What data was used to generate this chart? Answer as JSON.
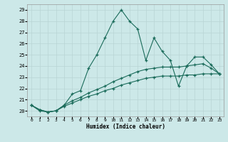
{
  "xlabel": "Humidex (Indice chaleur)",
  "x": [
    0,
    1,
    2,
    3,
    4,
    5,
    6,
    7,
    8,
    9,
    10,
    11,
    12,
    13,
    14,
    15,
    16,
    17,
    18,
    19,
    20,
    21,
    22,
    23
  ],
  "y_main": [
    20.5,
    20.0,
    19.9,
    20.0,
    20.5,
    21.5,
    21.8,
    23.8,
    25.0,
    26.5,
    28.0,
    29.0,
    28.0,
    27.3,
    24.5,
    26.5,
    25.3,
    24.5,
    22.2,
    24.0,
    24.8,
    24.8,
    24.1,
    23.3
  ],
  "y_line1": [
    20.5,
    20.1,
    19.9,
    20.0,
    20.5,
    20.9,
    21.2,
    21.6,
    21.9,
    22.2,
    22.6,
    22.9,
    23.2,
    23.5,
    23.7,
    23.8,
    23.9,
    23.9,
    23.9,
    24.0,
    24.1,
    24.2,
    23.8,
    23.3
  ],
  "y_line2": [
    20.5,
    20.1,
    19.9,
    20.0,
    20.4,
    20.7,
    21.0,
    21.3,
    21.5,
    21.8,
    22.0,
    22.3,
    22.5,
    22.7,
    22.9,
    23.0,
    23.1,
    23.1,
    23.1,
    23.2,
    23.2,
    23.3,
    23.3,
    23.3
  ],
  "color": "#1a6b5a",
  "bg_color": "#cce8e8",
  "grid_color": "#b8d4d4",
  "ylim": [
    19.5,
    29.5
  ],
  "yticks": [
    20,
    21,
    22,
    23,
    24,
    25,
    26,
    27,
    28,
    29
  ],
  "xticks": [
    0,
    1,
    2,
    3,
    4,
    5,
    6,
    7,
    8,
    9,
    10,
    11,
    12,
    13,
    14,
    15,
    16,
    17,
    18,
    19,
    20,
    21,
    22,
    23
  ]
}
